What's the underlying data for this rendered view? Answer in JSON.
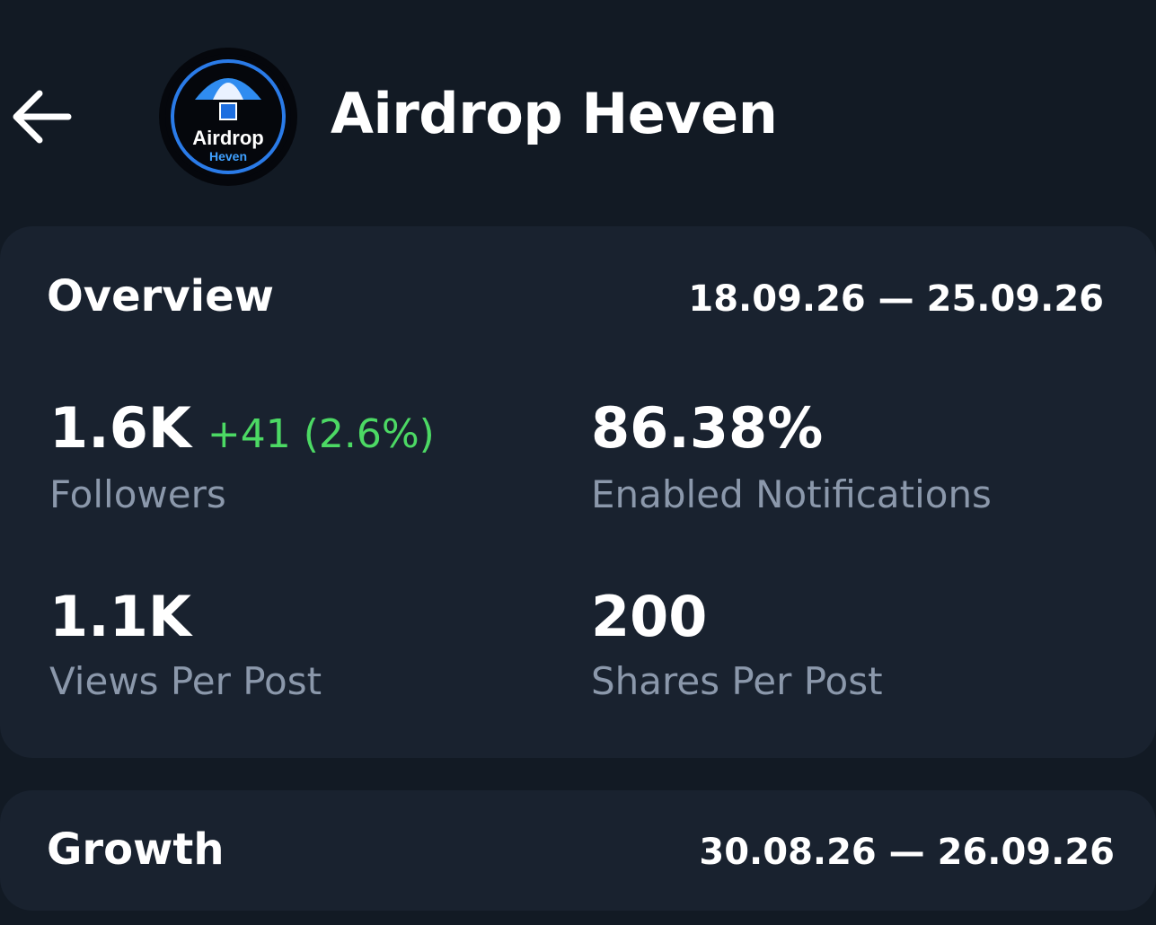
{
  "header": {
    "title": "Airdrop Heven",
    "avatar_text": "Airdrop",
    "avatar_subtext": "Heven"
  },
  "overview": {
    "title": "Overview",
    "date_range": "18.09.26 — 25.09.26",
    "stats": [
      {
        "value": "1.6K",
        "delta": "+41 (2.6%)",
        "label": "Followers"
      },
      {
        "value": "86.38%",
        "label": "Enabled Notifications"
      },
      {
        "value": "1.1K",
        "label": "Views Per Post"
      },
      {
        "value": "200",
        "label": "Shares Per Post"
      }
    ]
  },
  "growth": {
    "title": "Growth",
    "date_range": "30.08.26 — 26.09.26"
  }
}
